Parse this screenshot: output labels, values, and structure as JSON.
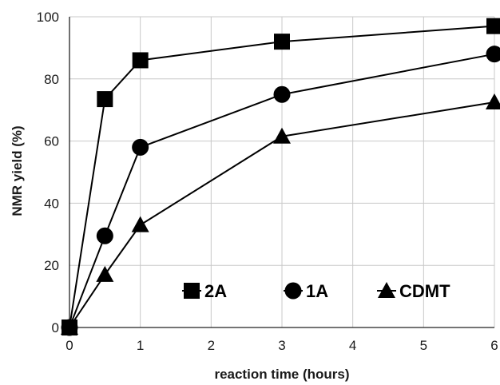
{
  "chart_data": {
    "type": "line",
    "xlabel": "reaction time (hours)",
    "ylabel": "NMR yield (%)",
    "xlim": [
      0,
      6
    ],
    "ylim": [
      0,
      100
    ],
    "x_ticks": [
      "0",
      "1",
      "2",
      "3",
      "4",
      "5",
      "6"
    ],
    "y_ticks": [
      "0",
      "20",
      "40",
      "60",
      "80",
      "100"
    ],
    "grid": true,
    "legend_position": "bottom-right inside plot",
    "series": [
      {
        "name": "2A",
        "marker": "square",
        "color": "#000000",
        "x": [
          0,
          0.5,
          1,
          3,
          6
        ],
        "y": [
          0,
          73.5,
          86,
          92,
          97
        ]
      },
      {
        "name": "1A",
        "marker": "circle",
        "color": "#000000",
        "x": [
          0,
          0.5,
          1,
          3,
          6
        ],
        "y": [
          0,
          29.5,
          58,
          75,
          88
        ]
      },
      {
        "name": "CDMT",
        "marker": "triangle",
        "color": "#000000",
        "x": [
          0,
          0.5,
          1,
          3,
          6
        ],
        "y": [
          0,
          17,
          33,
          61.5,
          72.5
        ]
      }
    ]
  }
}
